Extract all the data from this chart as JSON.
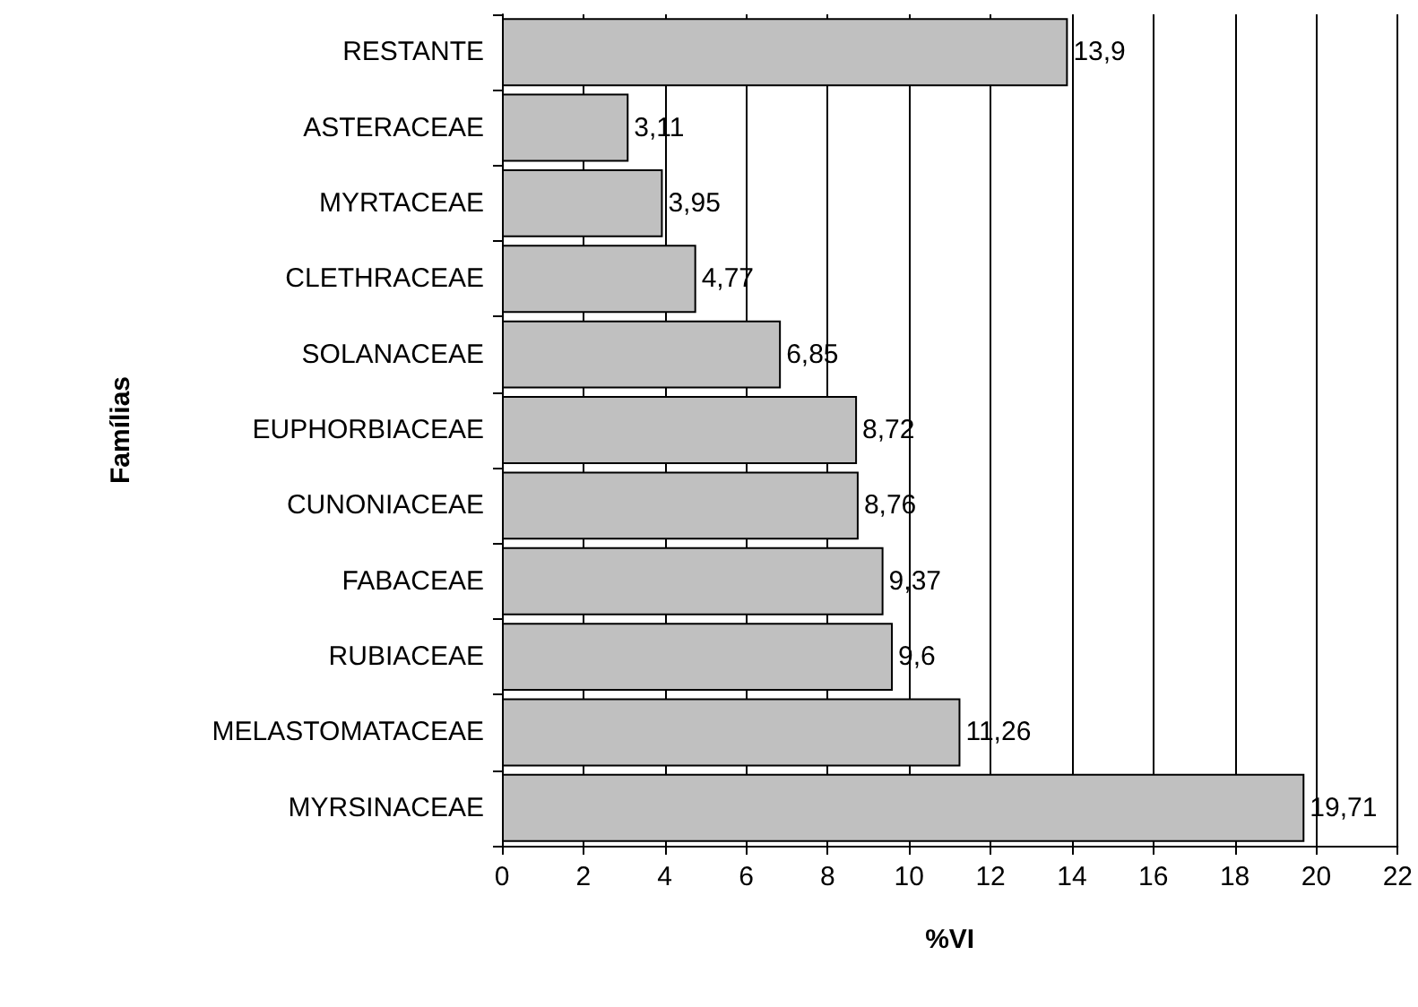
{
  "chart_data": {
    "type": "bar",
    "orientation": "horizontal",
    "xlabel": "%VI",
    "ylabel": "Famílias",
    "categories": [
      "RESTANTE",
      "ASTERACEAE",
      "MYRTACEAE",
      "CLETHRACEAE",
      "SOLANACEAE",
      "EUPHORBIACEAE",
      "CUNONIACEAE",
      "FABACEAE",
      "RUBIACEAE",
      "MELASTOMATACEAE",
      "MYRSINACEAE"
    ],
    "values": [
      13.9,
      3.11,
      3.95,
      4.77,
      6.85,
      8.72,
      8.76,
      9.37,
      9.6,
      11.26,
      19.71
    ],
    "value_labels": [
      "13,9",
      "3,11",
      "3,95",
      "4,77",
      "6,85",
      "8,72",
      "8,76",
      "9,37",
      "9,6",
      "11,26",
      "19,71"
    ],
    "color": "#c0c0c0",
    "xlim": [
      0,
      22
    ],
    "xticks": [
      0,
      2,
      4,
      6,
      8,
      10,
      12,
      14,
      16,
      18,
      20,
      22
    ],
    "grid": "x"
  }
}
